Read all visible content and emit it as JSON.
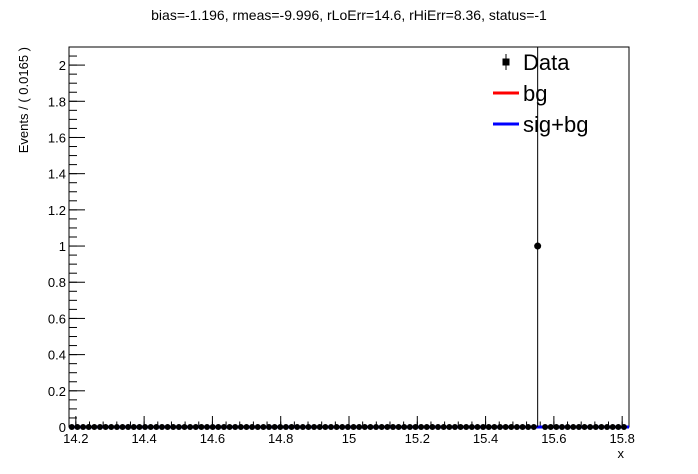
{
  "chart_data": {
    "type": "scatter",
    "title": "bias=-1.196, rmeas=-9.996, rLoErr=14.6, rHiErr=8.36, status=-1",
    "xlabel": "x",
    "ylabel": "Events / ( 0.0165 )",
    "xlim": [
      14.18,
      15.82
    ],
    "ylim": [
      0,
      2.1
    ],
    "x_ticks": [
      14.2,
      14.4,
      14.6,
      14.8,
      15,
      15.2,
      15.4,
      15.6,
      15.8
    ],
    "x_tick_labels": [
      "14.2",
      "14.4",
      "14.6",
      "14.8",
      "15",
      "15.2",
      "15.4",
      "15.6",
      "15.8"
    ],
    "y_ticks": [
      0,
      0.2,
      0.4,
      0.6,
      0.8,
      1,
      1.2,
      1.4,
      1.6,
      1.8,
      2
    ],
    "y_tick_labels": [
      "0",
      "0.2",
      "0.4",
      "0.6",
      "0.8",
      "1",
      "1.2",
      "1.4",
      "1.6",
      "1.8",
      "2"
    ],
    "bin_width": 0.0165,
    "series": [
      {
        "name": "Data",
        "style": "points",
        "color": "#000000",
        "points": [
          {
            "x": 15.5525,
            "y": 1,
            "err_low": 1,
            "err_high": 2.3
          }
        ],
        "zero_points_range": [
          14.18,
          15.82
        ]
      },
      {
        "name": "bg",
        "style": "line",
        "color": "#ff0000",
        "y_constant": 0
      },
      {
        "name": "sig+bg",
        "style": "line",
        "color": "#0000ff",
        "y_constant": 0
      }
    ],
    "legend": [
      {
        "label": "Data",
        "marker": "point",
        "color": "#000000"
      },
      {
        "label": "bg",
        "marker": "line",
        "color": "#ff0000"
      },
      {
        "label": "sig+bg",
        "marker": "line",
        "color": "#0000ff"
      }
    ],
    "legend_position": "top-right",
    "grid": false
  }
}
